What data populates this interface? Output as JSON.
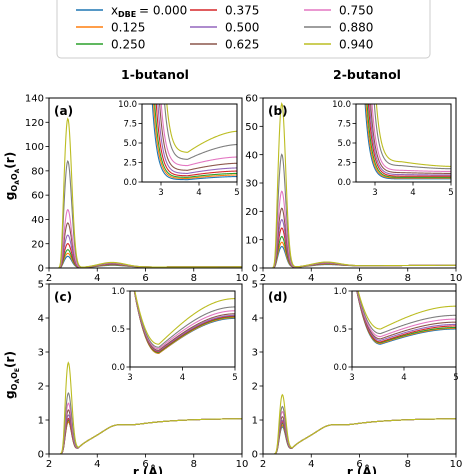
{
  "legend": {
    "entries": [
      {
        "label": "= 0.000",
        "color": "#1f77b4"
      },
      {
        "label": "0.125",
        "color": "#ff7f0e"
      },
      {
        "label": "0.250",
        "color": "#2ca02c"
      },
      {
        "label": "0.375",
        "color": "#d62728"
      },
      {
        "label": "0.500",
        "color": "#9467bd"
      },
      {
        "label": "0.625",
        "color": "#8c564b"
      },
      {
        "label": "0.750",
        "color": "#e377c2"
      },
      {
        "label": "0.880",
        "color": "#7f7f7f"
      },
      {
        "label": "0.940",
        "color": "#bcbd22"
      }
    ],
    "symbol_main": "x",
    "symbol_sub": "DBE"
  },
  "column_titles": [
    "1-butanol",
    "2-butanol"
  ],
  "ylabel_top": {
    "main": "g",
    "sub": "O",
    "subsub": "A",
    "sub2": "O",
    "subsub2": "A",
    "tail": "(r)"
  },
  "ylabel_bottom": {
    "main": "g",
    "sub": "O",
    "subsub": "A",
    "sub2": "O",
    "subsub2": "E",
    "tail": "(r)"
  },
  "xlabel": "r (Å)",
  "chart_data": [
    {
      "type": "line",
      "panel": "(a)",
      "xlim": [
        2,
        10
      ],
      "ylim": [
        0,
        140
      ],
      "xticks": [
        2,
        4,
        6,
        8,
        10
      ],
      "yticks": [
        0,
        20,
        40,
        60,
        80,
        100,
        120,
        140
      ],
      "first_peak": [
        9.5,
        12,
        15,
        20,
        27,
        37,
        48,
        88,
        123
      ],
      "second_peak": 4.0,
      "inset": {
        "xlim": [
          2.5,
          5
        ],
        "ylim": [
          0,
          10
        ],
        "xticks": [
          3,
          4,
          5
        ],
        "yticks": [
          0.0,
          2.5,
          5.0,
          7.5,
          10.0
        ],
        "first_peak": [
          9.5,
          12,
          15,
          20,
          27,
          37,
          48,
          88,
          123
        ],
        "min_value": [
          0.3,
          0.45,
          0.6,
          0.8,
          1.1,
          1.5,
          2.1,
          2.9,
          3.8
        ],
        "end_value": [
          0.7,
          0.9,
          1.1,
          1.4,
          1.8,
          2.4,
          3.2,
          4.8,
          6.5
        ]
      }
    },
    {
      "type": "line",
      "panel": "(b)",
      "xlim": [
        2,
        10
      ],
      "ylim": [
        0,
        60
      ],
      "xticks": [
        2,
        4,
        6,
        8,
        10
      ],
      "yticks": [
        0,
        10,
        20,
        30,
        40,
        50,
        60
      ],
      "first_peak": [
        7.5,
        9,
        11,
        14,
        17,
        21,
        27,
        40,
        58
      ],
      "second_peak": 1.5,
      "inset": {
        "xlim": [
          2.5,
          5
        ],
        "ylim": [
          0,
          10
        ],
        "xticks": [
          3,
          4,
          5
        ],
        "yticks": [
          0.0,
          2.5,
          5.0,
          7.5,
          10.0
        ],
        "first_peak": [
          7.5,
          9,
          11,
          14,
          17,
          21,
          27,
          40,
          58
        ],
        "min_value": [
          0.4,
          0.5,
          0.6,
          0.75,
          0.95,
          1.2,
          1.5,
          2.1,
          2.6
        ],
        "end_value": [
          0.4,
          0.5,
          0.6,
          0.75,
          0.9,
          1.1,
          1.35,
          1.7,
          2.0
        ]
      }
    },
    {
      "type": "line",
      "panel": "(c)",
      "xlim": [
        2,
        10
      ],
      "ylim": [
        0,
        5
      ],
      "xticks": [
        2,
        4,
        6,
        8,
        10
      ],
      "yticks": [
        0,
        1,
        2,
        3,
        4,
        5
      ],
      "first_peak": [
        1.15,
        1.15,
        1.2,
        1.25,
        1.35,
        1.5,
        1.7,
        2.0,
        2.9
      ],
      "inset": {
        "xlim": [
          3,
          5
        ],
        "ylim": [
          0,
          1
        ],
        "xticks": [
          3,
          4,
          5
        ],
        "yticks": [
          0.0,
          0.5,
          1.0
        ],
        "min_value": [
          0.18,
          0.18,
          0.19,
          0.2,
          0.21,
          0.22,
          0.24,
          0.26,
          0.3
        ],
        "end_value": [
          0.64,
          0.65,
          0.66,
          0.67,
          0.68,
          0.7,
          0.74,
          0.79,
          0.9
        ]
      }
    },
    {
      "type": "line",
      "panel": "(d)",
      "xlim": [
        2,
        10
      ],
      "ylim": [
        0,
        5
      ],
      "xticks": [
        2,
        4,
        6,
        8,
        10
      ],
      "yticks": [
        0,
        1,
        2,
        3,
        4,
        5
      ],
      "first_peak": [
        1.0,
        1.05,
        1.1,
        1.15,
        1.2,
        1.3,
        1.45,
        1.6,
        1.95
      ],
      "inset": {
        "xlim": [
          3,
          5
        ],
        "ylim": [
          0,
          1
        ],
        "xticks": [
          3,
          4,
          5
        ],
        "yticks": [
          0.0,
          0.5,
          1.0
        ],
        "min_value": [
          0.3,
          0.31,
          0.32,
          0.33,
          0.35,
          0.37,
          0.4,
          0.44,
          0.5
        ],
        "end_value": [
          0.5,
          0.51,
          0.52,
          0.54,
          0.56,
          0.59,
          0.63,
          0.68,
          0.8
        ]
      }
    }
  ]
}
